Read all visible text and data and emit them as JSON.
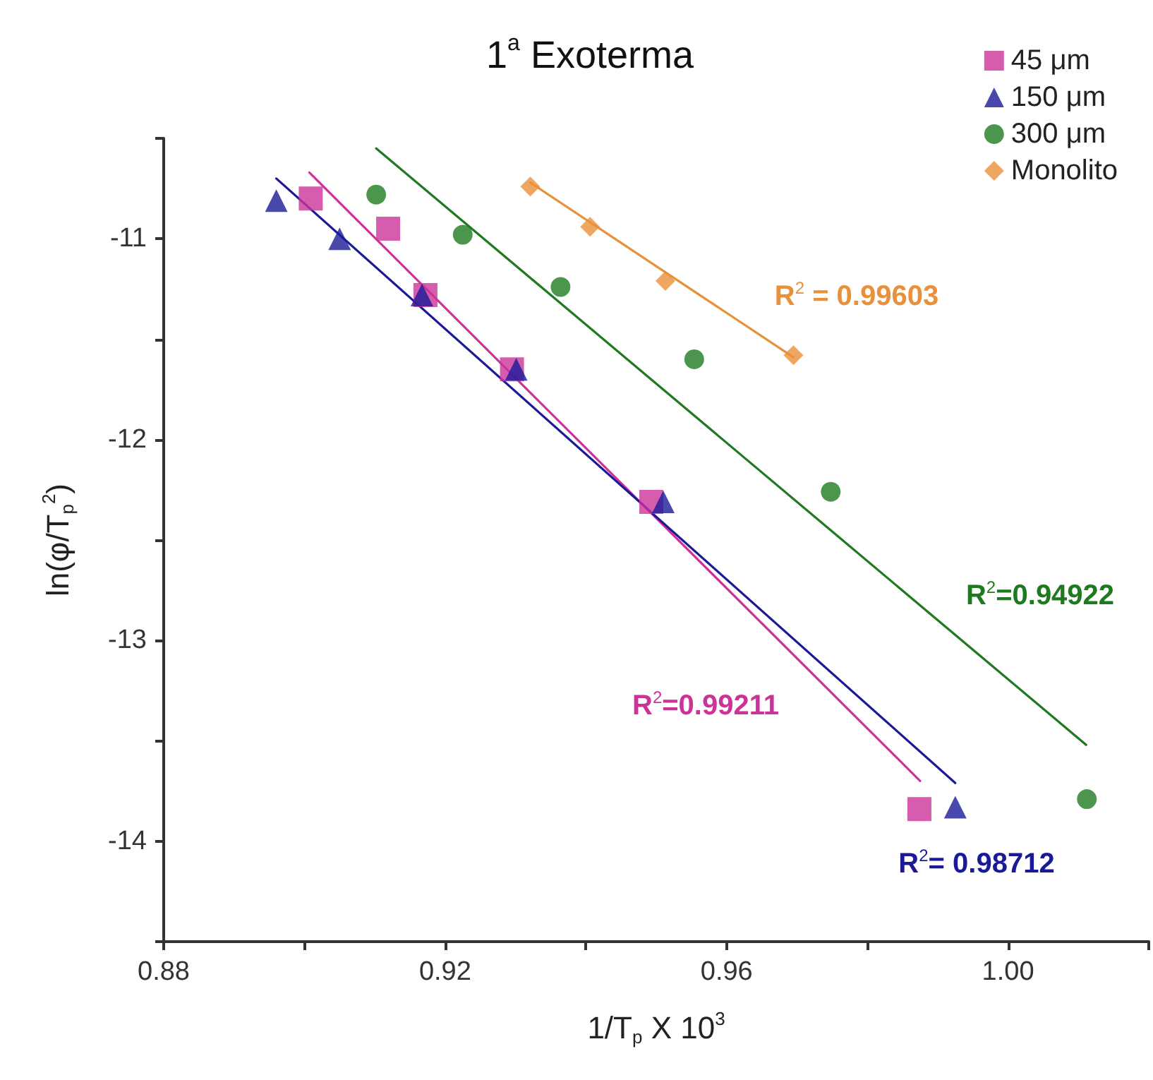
{
  "chart_data": {
    "type": "scatter",
    "title": "1$^{a}$ Exoterma",
    "xlabel": "1/T$_{p}$ X 10$^{3}$",
    "ylabel": "ln(φ/T$_{p}$$^{2}$)",
    "xlim": [
      0.88,
      1.02
    ],
    "ylim": [
      -14.5,
      -10.5
    ],
    "xticks": [
      0.88,
      {
        "value": 0.9,
        "label": null
      },
      0.92,
      {
        "value": 0.94,
        "label": null
      },
      0.96,
      {
        "value": 0.98,
        "label": null
      },
      "1.00",
      {
        "value": 1.02,
        "label": null
      }
    ],
    "yticks": [
      {
        "value": -14.5,
        "label": null
      },
      -14,
      {
        "value": -13.5,
        "label": null
      },
      -13,
      {
        "value": -12.5,
        "label": null
      },
      -12,
      {
        "value": -11.5,
        "label": null
      },
      -11,
      {
        "value": -10.5,
        "label": null
      }
    ],
    "grid": false,
    "legend": "top right",
    "series": [
      {
        "name": "45 μm",
        "color": "#cc3399",
        "marker": "square",
        "x": [
          0.9009,
          0.9119,
          0.9172,
          0.9295,
          0.9493,
          0.9874
        ],
        "values": [
          -10.8,
          -10.95,
          -11.28,
          -11.65,
          -12.31,
          -13.84
        ]
      },
      {
        "name": "150 μm",
        "color": "#1a1a99",
        "marker": "triangle",
        "x": [
          0.896,
          0.905,
          0.9167,
          0.9301,
          0.951,
          0.9925
        ],
        "values": [
          -10.81,
          -11.0,
          -11.28,
          -11.65,
          -12.31,
          -13.83
        ]
      },
      {
        "name": "300 μm",
        "color": "#1f7a1f",
        "marker": "circle",
        "x": [
          0.9102,
          0.9225,
          0.9364,
          0.9554,
          0.9748,
          1.0112
        ],
        "values": [
          -10.78,
          -10.98,
          -11.24,
          -11.6,
          -12.26,
          -13.79
        ]
      },
      {
        "name": "Monolito",
        "color": "#e8913a",
        "marker": "diamond",
        "x": [
          0.9321,
          0.9406,
          0.9513,
          0.9695
        ],
        "values": [
          -10.74,
          -10.94,
          -11.21,
          -11.58
        ]
      },
      {
        "type": "line",
        "color": "#cc3399",
        "marker": "none",
        "x": [
          0.9007,
          0.9875
        ],
        "values": [
          -10.67,
          -13.7
        ]
      },
      {
        "type": "line",
        "color": "#1a1a99",
        "marker": "none",
        "x": [
          0.896,
          0.9925
        ],
        "values": [
          -10.7,
          -13.71
        ]
      },
      {
        "type": "line",
        "color": "#1f7a1f",
        "marker": "none",
        "x": [
          0.9102,
          1.0111
        ],
        "values": [
          -10.55,
          -13.52
        ]
      },
      {
        "type": "line",
        "color": "#e8913a",
        "marker": "none",
        "x": [
          0.9321,
          0.9695
        ],
        "values": [
          -10.72,
          -11.59
        ]
      }
    ],
    "annotations": [
      "R$^{2}$ = 0.99603",
      "R$^{2}$=0.94922",
      "R$^{2}$=0.99211",
      "R$^{2}$= 0.98712"
    ]
  }
}
